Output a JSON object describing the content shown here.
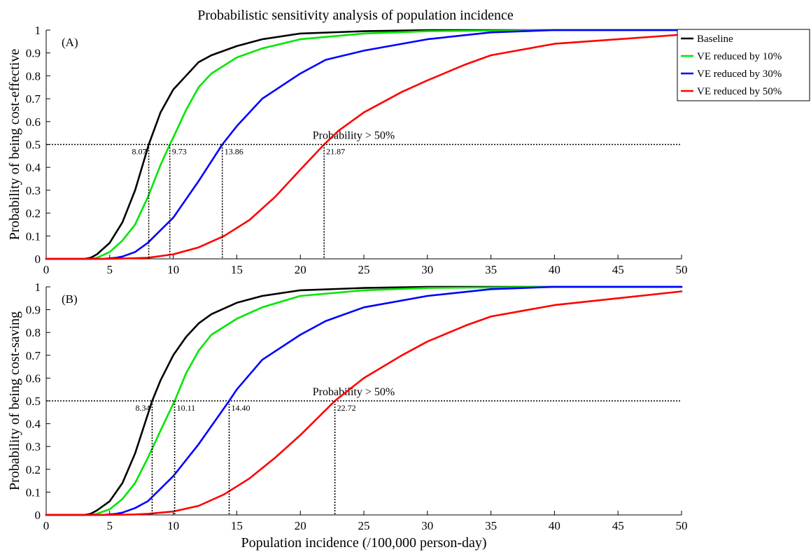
{
  "figure_title": "Probabilistic sensitivity analysis of population incidence",
  "xlabel": "Population incidence (/100,000 person-day)",
  "series_styles": [
    {
      "name": "Baseline",
      "color": "#000000"
    },
    {
      "name": "VE reduced by 10%",
      "color": "#00e600"
    },
    {
      "name": "VE reduced by 30%",
      "color": "#0000ff"
    },
    {
      "name": "VE reduced by 50%",
      "color": "#ff0000"
    }
  ],
  "legend": {
    "placement": "top-right",
    "entries": [
      "Baseline",
      "VE reduced by 10%",
      "VE reduced by 30%",
      "VE reduced by 50%"
    ]
  },
  "chart_data": [
    {
      "type": "line",
      "panel_label": "(A)",
      "title": "Probabilistic sensitivity analysis of population incidence",
      "xlabel": "",
      "ylabel": "Probability of being cost-effective",
      "xlim": [
        0,
        50
      ],
      "ylim": [
        0,
        1
      ],
      "xticks": [
        0,
        5,
        10,
        15,
        20,
        25,
        30,
        35,
        40,
        45,
        50
      ],
      "yticks": [
        0,
        0.1,
        0.2,
        0.3,
        0.4,
        0.5,
        0.6,
        0.7,
        0.8,
        0.9,
        1
      ],
      "grid": false,
      "threshold": {
        "y": 0.5,
        "label": "Probability > 50%"
      },
      "crossings": [
        {
          "x": 8.07,
          "label": "8.07"
        },
        {
          "x": 9.73,
          "label": "9.73"
        },
        {
          "x": 13.86,
          "label": "13.86"
        },
        {
          "x": 21.87,
          "label": "21.87"
        }
      ],
      "series": [
        {
          "name": "Baseline",
          "x": [
            0,
            3,
            3.5,
            4,
            5,
            6,
            7,
            8.07,
            9,
            10,
            11,
            12,
            13,
            15,
            17,
            20,
            25,
            30,
            40,
            50
          ],
          "y": [
            0,
            0,
            0.005,
            0.02,
            0.07,
            0.16,
            0.3,
            0.5,
            0.64,
            0.74,
            0.8,
            0.86,
            0.89,
            0.93,
            0.96,
            0.985,
            0.995,
            1,
            1,
            1
          ]
        },
        {
          "name": "VE reduced by 10%",
          "x": [
            0,
            3.5,
            4,
            5,
            6,
            7,
            8,
            9,
            9.73,
            10,
            11,
            12,
            13,
            15,
            17,
            20,
            25,
            30,
            40,
            50
          ],
          "y": [
            0,
            0,
            0.005,
            0.03,
            0.08,
            0.15,
            0.27,
            0.41,
            0.5,
            0.53,
            0.65,
            0.75,
            0.81,
            0.88,
            0.92,
            0.96,
            0.985,
            0.995,
            1,
            1
          ]
        },
        {
          "name": "VE reduced by 30%",
          "x": [
            0,
            4.5,
            5.5,
            6,
            7,
            8,
            10,
            12,
            13.86,
            15,
            17,
            20,
            22,
            25,
            30,
            35,
            40,
            50
          ],
          "y": [
            0,
            0,
            0.005,
            0.01,
            0.03,
            0.07,
            0.18,
            0.34,
            0.5,
            0.58,
            0.7,
            0.81,
            0.87,
            0.91,
            0.96,
            0.99,
            1,
            1
          ]
        },
        {
          "name": "VE reduced by 50%",
          "x": [
            0,
            5,
            7,
            8,
            10,
            12,
            14,
            16,
            18,
            20,
            21.87,
            23,
            25,
            28,
            30,
            33,
            35,
            40,
            45,
            50
          ],
          "y": [
            0,
            0,
            0.003,
            0.005,
            0.02,
            0.05,
            0.1,
            0.17,
            0.27,
            0.39,
            0.5,
            0.56,
            0.64,
            0.73,
            0.78,
            0.85,
            0.89,
            0.94,
            0.96,
            0.98
          ]
        }
      ]
    },
    {
      "type": "line",
      "panel_label": "(B)",
      "title": "",
      "xlabel": "Population incidence (/100,000 person-day)",
      "ylabel": "Probability of being cost-saving",
      "xlim": [
        0,
        50
      ],
      "ylim": [
        0,
        1
      ],
      "xticks": [
        0,
        5,
        10,
        15,
        20,
        25,
        30,
        35,
        40,
        45,
        50
      ],
      "yticks": [
        0,
        0.1,
        0.2,
        0.3,
        0.4,
        0.5,
        0.6,
        0.7,
        0.8,
        0.9,
        1
      ],
      "grid": false,
      "threshold": {
        "y": 0.5,
        "label": "Probability > 50%"
      },
      "crossings": [
        {
          "x": 8.34,
          "label": "8.34"
        },
        {
          "x": 10.11,
          "label": "10.11"
        },
        {
          "x": 14.4,
          "label": "14.40"
        },
        {
          "x": 22.72,
          "label": "22.72"
        }
      ],
      "series": [
        {
          "name": "Baseline",
          "x": [
            0,
            3,
            3.5,
            4,
            5,
            6,
            7,
            8.34,
            9,
            10,
            11,
            12,
            13,
            15,
            17,
            20,
            25,
            30,
            40,
            50
          ],
          "y": [
            0,
            0,
            0.005,
            0.02,
            0.06,
            0.14,
            0.27,
            0.5,
            0.59,
            0.7,
            0.78,
            0.84,
            0.88,
            0.93,
            0.96,
            0.985,
            0.995,
            1,
            1,
            1
          ]
        },
        {
          "name": "VE reduced by 10%",
          "x": [
            0,
            3.5,
            4,
            5,
            6,
            7,
            8,
            9,
            10.11,
            11,
            12,
            13,
            15,
            17,
            20,
            25,
            30,
            40,
            50
          ],
          "y": [
            0,
            0,
            0.005,
            0.025,
            0.07,
            0.14,
            0.25,
            0.37,
            0.5,
            0.62,
            0.72,
            0.79,
            0.86,
            0.91,
            0.96,
            0.985,
            0.995,
            1,
            1
          ]
        },
        {
          "name": "VE reduced by 30%",
          "x": [
            0,
            4.5,
            5.5,
            6,
            7,
            8,
            10,
            12,
            14.4,
            15,
            17,
            20,
            22,
            25,
            30,
            35,
            40,
            50
          ],
          "y": [
            0,
            0,
            0.005,
            0.01,
            0.03,
            0.06,
            0.17,
            0.31,
            0.5,
            0.55,
            0.68,
            0.79,
            0.85,
            0.91,
            0.96,
            0.99,
            1,
            1
          ]
        },
        {
          "name": "VE reduced by 50%",
          "x": [
            0,
            5,
            7,
            8,
            10,
            12,
            14,
            16,
            18,
            20,
            22.72,
            25,
            28,
            30,
            33,
            35,
            40,
            45,
            50
          ],
          "y": [
            0,
            0,
            0.002,
            0.005,
            0.015,
            0.04,
            0.09,
            0.16,
            0.25,
            0.35,
            0.5,
            0.6,
            0.7,
            0.76,
            0.83,
            0.87,
            0.92,
            0.95,
            0.98
          ]
        }
      ]
    }
  ]
}
